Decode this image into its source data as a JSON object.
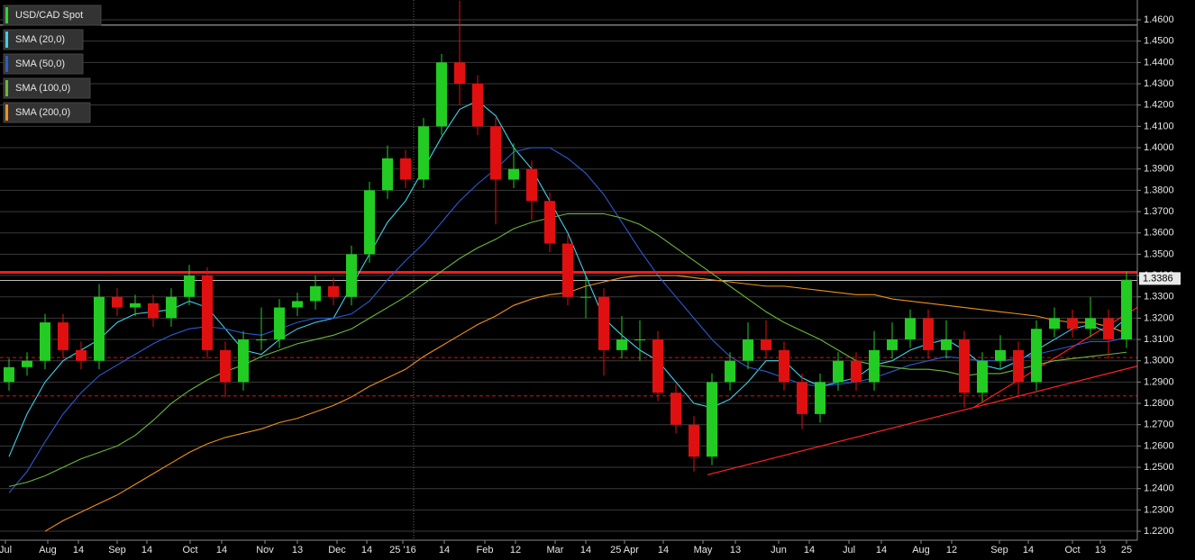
{
  "chart_data": {
    "type": "candlestick",
    "name": "USD/CAD Spot",
    "color": "#2bd62b",
    "up_color": "#22cc22",
    "down_color": "#e01010",
    "x": [
      0,
      1,
      2,
      3,
      4,
      5,
      6,
      7,
      8,
      9,
      10,
      11,
      12,
      13,
      14,
      15,
      16,
      17,
      18,
      19,
      20,
      21,
      22,
      23,
      24,
      25,
      26,
      27,
      28,
      29,
      30,
      31,
      32,
      33,
      34,
      35,
      36,
      37,
      38,
      39,
      40,
      41,
      42,
      43,
      44,
      45,
      46,
      47,
      48,
      49,
      50,
      51,
      52,
      53,
      54,
      55,
      56,
      57,
      58,
      59,
      60,
      61,
      62
    ],
    "open": [
      1.29,
      1.297,
      1.3,
      1.318,
      1.305,
      1.3,
      1.33,
      1.325,
      1.327,
      1.32,
      1.33,
      1.34,
      1.305,
      1.29,
      1.31,
      1.31,
      1.325,
      1.328,
      1.335,
      1.33,
      1.35,
      1.38,
      1.395,
      1.385,
      1.41,
      1.44,
      1.43,
      1.41,
      1.385,
      1.39,
      1.375,
      1.355,
      1.33,
      1.33,
      1.305,
      1.31,
      1.31,
      1.285,
      1.27,
      1.255,
      1.29,
      1.3,
      1.31,
      1.305,
      1.29,
      1.275,
      1.29,
      1.3,
      1.29,
      1.305,
      1.31,
      1.32,
      1.305,
      1.31,
      1.285,
      1.3,
      1.305,
      1.29,
      1.315,
      1.32,
      1.315,
      1.32,
      1.31
    ],
    "high": [
      1.301,
      1.304,
      1.322,
      1.322,
      1.309,
      1.336,
      1.334,
      1.331,
      1.331,
      1.334,
      1.345,
      1.344,
      1.309,
      1.314,
      1.325,
      1.329,
      1.332,
      1.34,
      1.339,
      1.354,
      1.384,
      1.401,
      1.399,
      1.414,
      1.444,
      1.469,
      1.434,
      1.414,
      1.402,
      1.394,
      1.379,
      1.359,
      1.34,
      1.334,
      1.321,
      1.319,
      1.314,
      1.289,
      1.274,
      1.294,
      1.304,
      1.318,
      1.319,
      1.309,
      1.294,
      1.294,
      1.304,
      1.304,
      1.314,
      1.318,
      1.324,
      1.324,
      1.319,
      1.314,
      1.304,
      1.312,
      1.309,
      1.319,
      1.325,
      1.324,
      1.33,
      1.324,
      1.342
    ],
    "low": [
      1.286,
      1.293,
      1.296,
      1.301,
      1.296,
      1.296,
      1.321,
      1.321,
      1.316,
      1.316,
      1.326,
      1.301,
      1.283,
      1.286,
      1.305,
      1.306,
      1.321,
      1.324,
      1.326,
      1.326,
      1.346,
      1.376,
      1.381,
      1.381,
      1.406,
      1.42,
      1.406,
      1.364,
      1.381,
      1.366,
      1.351,
      1.326,
      1.32,
      1.293,
      1.301,
      1.3,
      1.281,
      1.266,
      1.248,
      1.251,
      1.286,
      1.296,
      1.301,
      1.286,
      1.268,
      1.271,
      1.286,
      1.286,
      1.286,
      1.301,
      1.306,
      1.301,
      1.301,
      1.278,
      1.281,
      1.296,
      1.283,
      1.286,
      1.311,
      1.311,
      1.311,
      1.301,
      1.306
    ],
    "close": [
      1.297,
      1.3,
      1.318,
      1.305,
      1.3,
      1.33,
      1.325,
      1.327,
      1.32,
      1.33,
      1.34,
      1.305,
      1.29,
      1.31,
      1.31,
      1.325,
      1.328,
      1.335,
      1.33,
      1.35,
      1.38,
      1.395,
      1.385,
      1.41,
      1.44,
      1.43,
      1.41,
      1.385,
      1.39,
      1.375,
      1.355,
      1.33,
      1.33,
      1.305,
      1.31,
      1.31,
      1.285,
      1.27,
      1.255,
      1.29,
      1.3,
      1.31,
      1.305,
      1.29,
      1.275,
      1.29,
      1.3,
      1.29,
      1.305,
      1.31,
      1.32,
      1.305,
      1.31,
      1.285,
      1.3,
      1.305,
      1.29,
      1.315,
      1.32,
      1.315,
      1.32,
      1.31,
      1.338
    ],
    "overlays": [
      {
        "name": "SMA (20,0)",
        "color": "#3fd0e8",
        "values": [
          1.255,
          1.275,
          1.29,
          1.3,
          1.305,
          1.31,
          1.318,
          1.322,
          1.323,
          1.324,
          1.328,
          1.325,
          1.315,
          1.305,
          1.303,
          1.31,
          1.315,
          1.318,
          1.32,
          1.335,
          1.35,
          1.365,
          1.375,
          1.39,
          1.405,
          1.418,
          1.422,
          1.415,
          1.4,
          1.39,
          1.375,
          1.36,
          1.34,
          1.32,
          1.312,
          1.305,
          1.3,
          1.29,
          1.28,
          1.278,
          1.282,
          1.29,
          1.3,
          1.3,
          1.292,
          1.288,
          1.29,
          1.292,
          1.298,
          1.3,
          1.305,
          1.308,
          1.31,
          1.305,
          1.298,
          1.296,
          1.3,
          1.305,
          1.31,
          1.315,
          1.317,
          1.313,
          1.32
        ]
      },
      {
        "name": "SMA (50,0)",
        "color": "#2a5bd0",
        "values": [
          1.238,
          1.248,
          1.262,
          1.275,
          1.285,
          1.293,
          1.298,
          1.303,
          1.308,
          1.312,
          1.315,
          1.316,
          1.315,
          1.313,
          1.312,
          1.315,
          1.318,
          1.32,
          1.32,
          1.322,
          1.328,
          1.338,
          1.347,
          1.355,
          1.365,
          1.375,
          1.383,
          1.39,
          1.398,
          1.4,
          1.4,
          1.395,
          1.388,
          1.378,
          1.365,
          1.352,
          1.34,
          1.33,
          1.32,
          1.31,
          1.302,
          1.297,
          1.295,
          1.292,
          1.289,
          1.288,
          1.289,
          1.29,
          1.292,
          1.295,
          1.298,
          1.3,
          1.302,
          1.301,
          1.3,
          1.3,
          1.301,
          1.303,
          1.305,
          1.307,
          1.309,
          1.309,
          1.311
        ]
      },
      {
        "name": "SMA (100,0)",
        "color": "#6ab83a",
        "values": [
          1.241,
          1.243,
          1.246,
          1.25,
          1.254,
          1.257,
          1.26,
          1.265,
          1.272,
          1.28,
          1.286,
          1.291,
          1.295,
          1.298,
          1.302,
          1.305,
          1.308,
          1.31,
          1.312,
          1.315,
          1.32,
          1.325,
          1.33,
          1.336,
          1.342,
          1.348,
          1.353,
          1.357,
          1.362,
          1.365,
          1.367,
          1.369,
          1.369,
          1.369,
          1.367,
          1.364,
          1.359,
          1.353,
          1.347,
          1.341,
          1.335,
          1.329,
          1.323,
          1.318,
          1.314,
          1.31,
          1.305,
          1.3,
          1.298,
          1.297,
          1.296,
          1.296,
          1.295,
          1.293,
          1.294,
          1.294,
          1.296,
          1.298,
          1.3,
          1.301,
          1.302,
          1.303,
          1.304
        ]
      },
      {
        "name": "SMA (200,0)",
        "color": "#f0901e",
        "values": [
          null,
          null,
          1.22,
          1.225,
          1.229,
          1.233,
          1.237,
          1.242,
          1.247,
          1.252,
          1.257,
          1.261,
          1.264,
          1.266,
          1.268,
          1.271,
          1.273,
          1.276,
          1.279,
          1.283,
          1.288,
          1.292,
          1.296,
          1.302,
          1.307,
          1.312,
          1.317,
          1.321,
          1.326,
          1.329,
          1.331,
          1.332,
          1.335,
          1.337,
          1.339,
          1.34,
          1.34,
          1.34,
          1.339,
          1.338,
          1.337,
          1.336,
          1.335,
          1.335,
          1.334,
          1.333,
          1.332,
          1.331,
          1.331,
          1.329,
          1.328,
          1.327,
          1.326,
          1.325,
          1.324,
          1.323,
          1.322,
          1.321,
          1.319,
          1.318,
          1.318,
          1.316,
          1.313
        ]
      }
    ],
    "xlim": [
      -0.5,
      62.6
    ],
    "xticks": [
      {
        "value": -0.2,
        "label": "Jul"
      },
      {
        "value": 2.15,
        "label": "Aug"
      },
      {
        "value": 3.85,
        "label": "14"
      },
      {
        "value": 6,
        "label": "Sep"
      },
      {
        "value": 7.65,
        "label": "14"
      },
      {
        "value": 10.05,
        "label": "Oct"
      },
      {
        "value": 11.8,
        "label": "14"
      },
      {
        "value": 14.2,
        "label": "Nov"
      },
      {
        "value": 16,
        "label": "13"
      },
      {
        "value": 18.2,
        "label": "Dec"
      },
      {
        "value": 19.85,
        "label": "14"
      },
      {
        "value": 21.85,
        "label": "25 '16"
      },
      {
        "value": 24.15,
        "label": "14"
      },
      {
        "value": 26.4,
        "label": "Feb"
      },
      {
        "value": 28.1,
        "label": "12"
      },
      {
        "value": 30.3,
        "label": "Mar"
      },
      {
        "value": 32,
        "label": "14"
      },
      {
        "value": 34.15,
        "label": "25 Apr"
      },
      {
        "value": 36.3,
        "label": "14"
      },
      {
        "value": 38.5,
        "label": "May"
      },
      {
        "value": 40.3,
        "label": "13"
      },
      {
        "value": 42.7,
        "label": "Jun"
      },
      {
        "value": 44.4,
        "label": "14"
      },
      {
        "value": 46.6,
        "label": "Jul"
      },
      {
        "value": 48.4,
        "label": "14"
      },
      {
        "value": 50.6,
        "label": "Aug"
      },
      {
        "value": 52.3,
        "label": "12"
      },
      {
        "value": 54.95,
        "label": "Sep"
      },
      {
        "value": 56.55,
        "label": "14"
      },
      {
        "value": 59,
        "label": "Oct"
      },
      {
        "value": 60.55,
        "label": "13"
      },
      {
        "value": 62,
        "label": "25"
      }
    ],
    "ylim": [
      1.2158,
      1.4693
    ],
    "yticks": [
      {
        "value": 1.22,
        "label": "1.2200"
      },
      {
        "value": 1.23,
        "label": "1.2300"
      },
      {
        "value": 1.24,
        "label": "1.2400"
      },
      {
        "value": 1.25,
        "label": "1.2500"
      },
      {
        "value": 1.26,
        "label": "1.2600"
      },
      {
        "value": 1.27,
        "label": "1.2700"
      },
      {
        "value": 1.28,
        "label": "1.2800"
      },
      {
        "value": 1.29,
        "label": "1.2900"
      },
      {
        "value": 1.3,
        "label": "1.3000"
      },
      {
        "value": 1.31,
        "label": "1.3100"
      },
      {
        "value": 1.32,
        "label": "1.3200"
      },
      {
        "value": 1.33,
        "label": "1.3300"
      },
      {
        "value": 1.34,
        "label": "1.3400"
      },
      {
        "value": 1.35,
        "label": "1.3500"
      },
      {
        "value": 1.36,
        "label": "1.3600"
      },
      {
        "value": 1.37,
        "label": "1.3700"
      },
      {
        "value": 1.38,
        "label": "1.3800"
      },
      {
        "value": 1.39,
        "label": "1.3900"
      },
      {
        "value": 1.4,
        "label": "1.4000"
      },
      {
        "value": 1.41,
        "label": "1.4100"
      },
      {
        "value": 1.42,
        "label": "1.4200"
      },
      {
        "value": 1.43,
        "label": "1.4300"
      },
      {
        "value": 1.44,
        "label": "1.4400"
      },
      {
        "value": 1.45,
        "label": "1.4500"
      },
      {
        "value": 1.46,
        "label": "1.4600"
      }
    ],
    "grid": true,
    "hlines": [
      {
        "value": 1.4575,
        "color": "#bbbbbb",
        "width": 1,
        "dashed": false
      },
      {
        "value": 1.3377,
        "color": "#bbbbbb",
        "width": 1,
        "dashed": false
      },
      {
        "value": 1.3415,
        "color": "#ff1a1a",
        "width": 3,
        "dashed": false
      },
      {
        "value": 1.3015,
        "color": "#e01010",
        "width": 1,
        "dashed": true
      },
      {
        "value": 1.2835,
        "color": "#e01010",
        "width": 1,
        "dashed": true
      }
    ],
    "trendlines": [
      {
        "color": "#ff2020",
        "x": [
          38.75,
          62.6
        ],
        "y": [
          1.2465,
          1.2975
        ]
      },
      {
        "color": "#ff2020",
        "x": [
          53.5,
          62.6
        ],
        "y": [
          1.278,
          1.325
        ]
      }
    ],
    "last_price": 1.3386
  }
}
